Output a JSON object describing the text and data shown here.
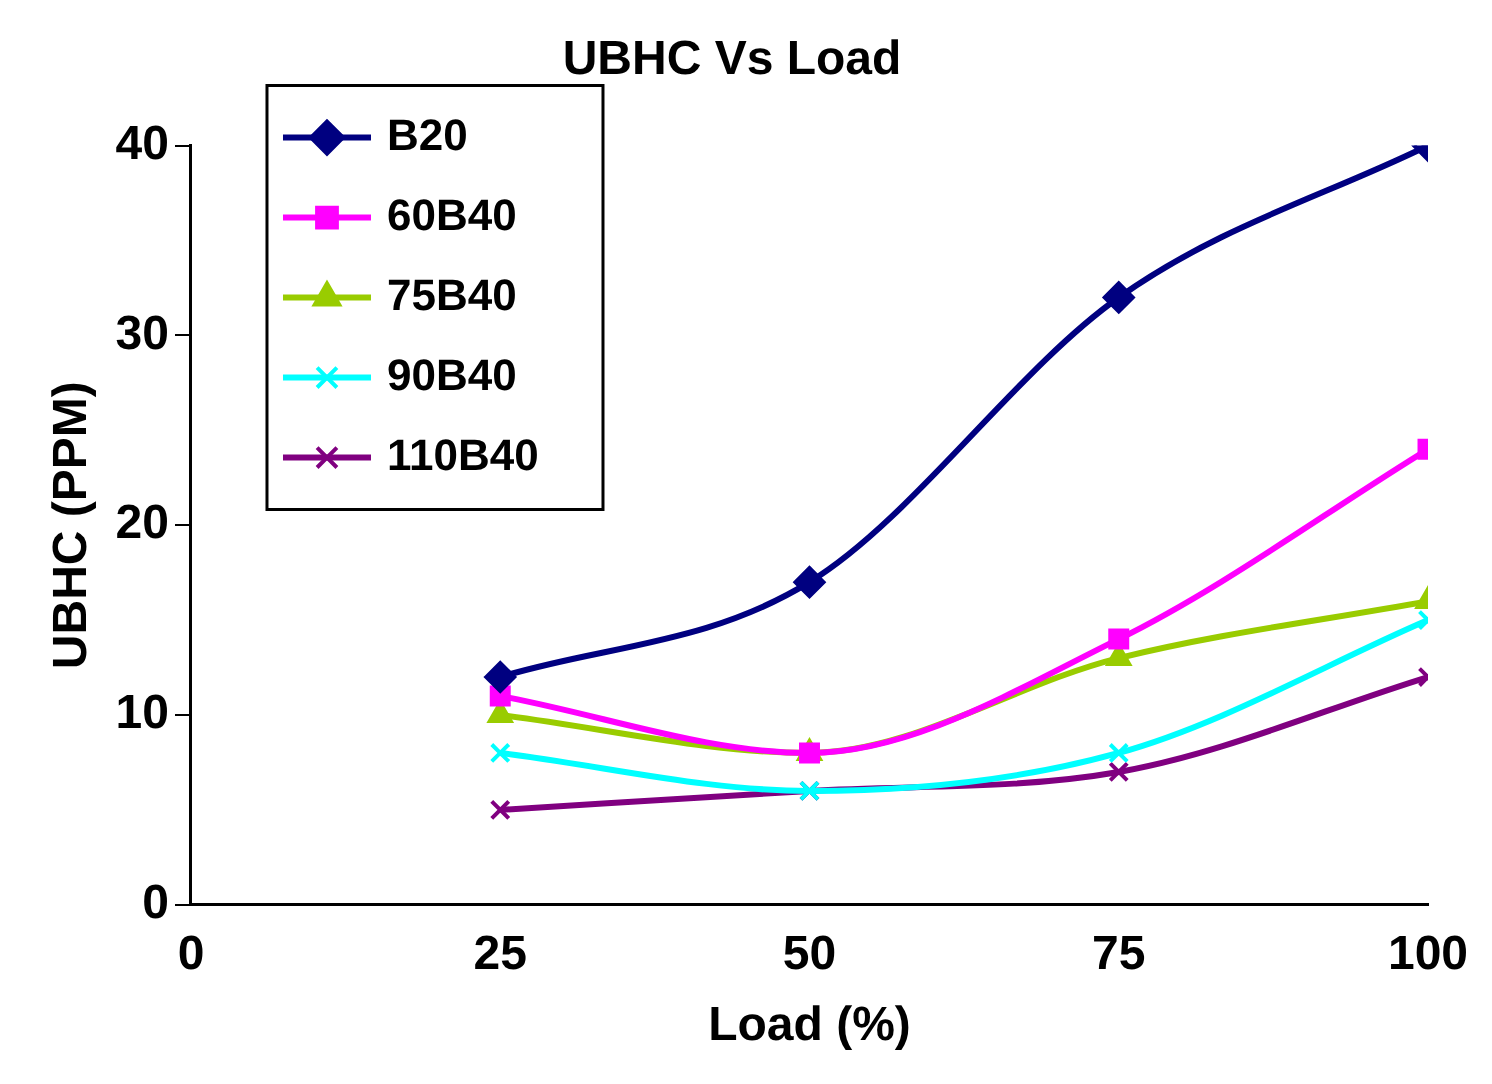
{
  "chart_data": {
    "type": "line",
    "title": "UBHC Vs Load",
    "xlabel": "Load (%)",
    "ylabel": "UBHC (PPM)",
    "x": [
      25,
      50,
      75,
      100
    ],
    "xlim": [
      0,
      100
    ],
    "xticks": [
      0,
      25,
      50,
      75,
      100
    ],
    "ylim": [
      0,
      40
    ],
    "yticks": [
      0,
      10,
      20,
      30,
      40
    ],
    "grid": false,
    "legend": "top left",
    "line_style": "solid",
    "series": [
      {
        "name": "B20",
        "color": "#000080",
        "marker": "diamond",
        "values": [
          12,
          17,
          32,
          40
        ]
      },
      {
        "name": "60B40",
        "color": "#ff00ff",
        "marker": "square",
        "values": [
          11,
          8,
          14,
          24
        ]
      },
      {
        "name": "75B40",
        "color": "#99cc00",
        "marker": "triangle",
        "values": [
          10,
          8,
          13,
          16
        ]
      },
      {
        "name": "90B40",
        "color": "#00ffff",
        "marker": "cross",
        "values": [
          8,
          6,
          8,
          15
        ]
      },
      {
        "name": "110B40",
        "color": "#800080",
        "marker": "cross",
        "values": [
          5,
          6,
          7,
          12
        ]
      }
    ]
  }
}
